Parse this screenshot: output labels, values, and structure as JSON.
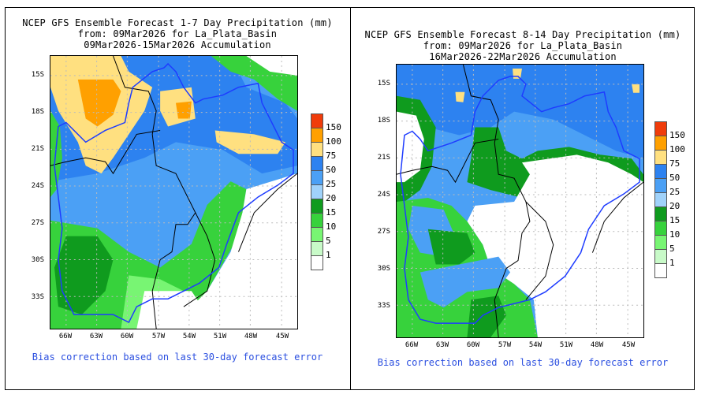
{
  "panels": [
    {
      "title_lines": [
        "NCEP GFS Ensemble Forecast 1-7 Day Precipitation (mm)",
        "from: 09Mar2026   for La_Plata_Basin",
        "09Mar2026-15Mar2026 Accumulation"
      ],
      "lat_labels": [
        "15S",
        "18S",
        "21S",
        "24S",
        "27S",
        "30S",
        "33S"
      ],
      "lon_labels": [
        "66W",
        "63W",
        "60W",
        "57W",
        "54W",
        "51W",
        "48W",
        "45W"
      ],
      "footnote": "Bias correction based on last 30-day forecast error",
      "dominant_pattern": "wet-north"
    },
    {
      "title_lines": [
        "NCEP GFS Ensemble Forecast 8-14 Day Precipitation (mm)",
        "from: 09Mar2026   for La_Plata_Basin",
        "16Mar2026-22Mar2026 Accumulation"
      ],
      "lat_labels": [
        "15S",
        "18S",
        "21S",
        "24S",
        "27S",
        "30S",
        "33S"
      ],
      "lon_labels": [
        "66W",
        "63W",
        "60W",
        "57W",
        "54W",
        "51W",
        "48W",
        "45W"
      ],
      "footnote": "Bias correction based on last 30-day forecast error",
      "dominant_pattern": "dry-south"
    }
  ],
  "colorbar": {
    "labels": [
      "150",
      "100",
      "75",
      "50",
      "25",
      "20",
      "15",
      "10",
      "5",
      "1"
    ],
    "colors": [
      "#f03c0a",
      "#ffa000",
      "#ffe080",
      "#2d82f0",
      "#4ba0f5",
      "#a0d2fa",
      "#0f9b1e",
      "#37d23c",
      "#78f573",
      "#c8fac8",
      "#ffffff"
    ]
  },
  "colors": {
    "basin_outline": "#1e3cff",
    "border": "#000000",
    "footnote": "#2b4fe0"
  }
}
